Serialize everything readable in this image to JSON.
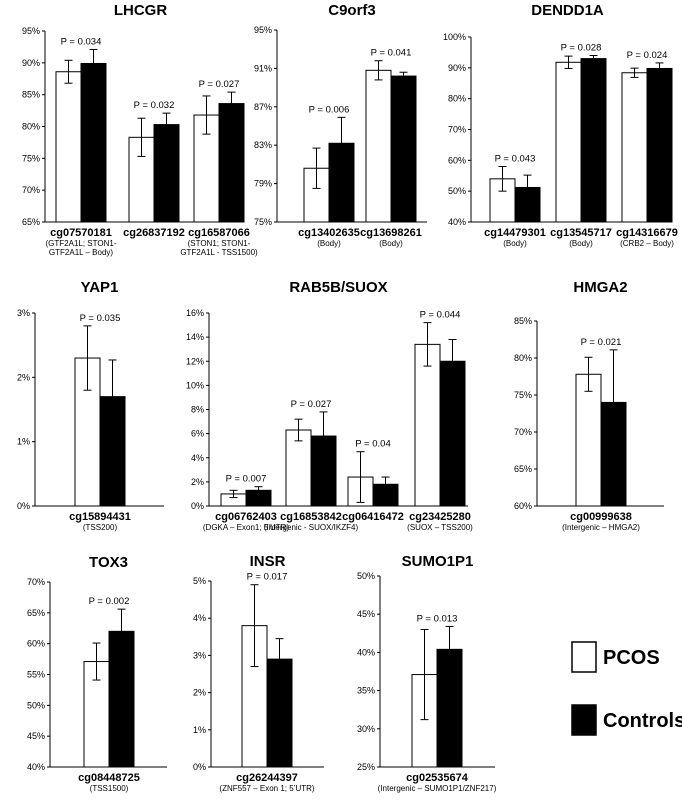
{
  "legend": [
    {
      "label": "PCOS",
      "color": "#ffffff"
    },
    {
      "label": "Controls",
      "color": "#000000"
    }
  ],
  "chart_data": [
    {
      "type": "bar",
      "title": "LHCGR",
      "ylim": [
        0.65,
        0.95
      ],
      "ticks": [
        "65%",
        "70%",
        "75%",
        "80%",
        "85%",
        "90%",
        "95%"
      ],
      "categories": [
        "cg07570181",
        "cg26837192",
        "cg16587066"
      ],
      "sublabels": [
        [
          "(GTF2A1L; STON1-",
          "GTF2A1L – Body)"
        ],
        [
          "",
          ""
        ],
        [
          "(STON1; STON1-",
          "GTF2A1L  - TSS1500)"
        ]
      ],
      "pvalues": [
        "P = 0.034",
        "P = 0.032",
        "P = 0.027"
      ],
      "series": [
        {
          "name": "PCOS",
          "values": [
            0.886,
            0.783,
            0.818
          ],
          "errors": [
            0.018,
            0.03,
            0.03
          ]
        },
        {
          "name": "Controls",
          "values": [
            0.899,
            0.803,
            0.836
          ],
          "errors": [
            0.022,
            0.018,
            0.018
          ]
        }
      ]
    },
    {
      "type": "bar",
      "title": "C9orf3",
      "ylim": [
        0.75,
        0.95
      ],
      "ticks": [
        "75%",
        "79%",
        "83%",
        "87%",
        "91%",
        "95%"
      ],
      "categories": [
        "cg13402635",
        "cg13698261"
      ],
      "sublabels": [
        [
          "(Body)"
        ],
        [
          "(Body)"
        ]
      ],
      "pvalues": [
        "P = 0.006",
        "P = 0.041"
      ],
      "series": [
        {
          "name": "PCOS",
          "values": [
            0.806,
            0.908
          ],
          "errors": [
            0.021,
            0.01
          ]
        },
        {
          "name": "Controls",
          "values": [
            0.832,
            0.902
          ],
          "errors": [
            0.027,
            0.004
          ]
        }
      ]
    },
    {
      "type": "bar",
      "title": "DENDD1A",
      "ylim": [
        0.4,
        1.0
      ],
      "ticks": [
        "40%",
        "50%",
        "60%",
        "70%",
        "80%",
        "90%",
        "100%"
      ],
      "categories": [
        "cg14479301",
        "cg13545717",
        "cg14316679"
      ],
      "sublabels": [
        [
          "(Body)"
        ],
        [
          "(Body)"
        ],
        [
          "(CRB2 – Body)"
        ]
      ],
      "pvalues": [
        "P = 0.043",
        "P = 0.028",
        "P = 0.024"
      ],
      "series": [
        {
          "name": "PCOS",
          "values": [
            0.54,
            0.918,
            0.884
          ],
          "errors": [
            0.04,
            0.02,
            0.015
          ]
        },
        {
          "name": "Controls",
          "values": [
            0.512,
            0.93,
            0.898
          ],
          "errors": [
            0.04,
            0.01,
            0.018
          ]
        }
      ]
    },
    {
      "type": "bar",
      "title": "YAP1",
      "ylim": [
        0,
        0.03
      ],
      "ticks": [
        "0%",
        "1%",
        "2%",
        "3%"
      ],
      "categories": [
        "cg15894431"
      ],
      "sublabels": [
        [
          "(TSS200)"
        ]
      ],
      "pvalues": [
        "P = 0.035"
      ],
      "series": [
        {
          "name": "PCOS",
          "values": [
            0.023
          ],
          "errors": [
            0.005
          ]
        },
        {
          "name": "Controls",
          "values": [
            0.017
          ],
          "errors": [
            0.0057
          ]
        }
      ]
    },
    {
      "type": "bar",
      "title": "RAB5B/SUOX",
      "ylim": [
        0,
        0.16
      ],
      "ticks": [
        "0%",
        "2%",
        "4%",
        "6%",
        "8%",
        "10%",
        "12%",
        "14%",
        "16%"
      ],
      "categories": [
        "cg06762403",
        "cg16853842",
        "cg06416472",
        "cg23425280"
      ],
      "sublabels": [
        [
          "(DGKA – Exon1; 5’UTR)"
        ],
        [
          "(Intergenic - SUOX/IKZF4)"
        ],
        [
          ""
        ],
        [
          "(SUOX – TSS200)"
        ]
      ],
      "pvalues": [
        "P = 0.007",
        "P = 0.027",
        "P = 0.04",
        "P = 0.044"
      ],
      "series": [
        {
          "name": "PCOS",
          "values": [
            0.01,
            0.063,
            0.024,
            0.134
          ],
          "errors": [
            0.003,
            0.009,
            0.021,
            0.018
          ]
        },
        {
          "name": "Controls",
          "values": [
            0.013,
            0.058,
            0.018,
            0.12
          ],
          "errors": [
            0.003,
            0.02,
            0.006,
            0.018
          ]
        }
      ]
    },
    {
      "type": "bar",
      "title": "HMGA2",
      "ylim": [
        0.6,
        0.85
      ],
      "ticks": [
        "60%",
        "65%",
        "70%",
        "75%",
        "80%",
        "85%"
      ],
      "categories": [
        "cg00999638"
      ],
      "sublabels": [
        [
          "(Intergenic – HMGA2)"
        ]
      ],
      "pvalues": [
        "P = 0.021"
      ],
      "series": [
        {
          "name": "PCOS",
          "values": [
            0.778
          ],
          "errors": [
            0.023
          ]
        },
        {
          "name": "Controls",
          "values": [
            0.74
          ],
          "errors": [
            0.071
          ]
        }
      ]
    },
    {
      "type": "bar",
      "title": "TOX3",
      "ylim": [
        0.4,
        0.7
      ],
      "ticks": [
        "40%",
        "45%",
        "50%",
        "55%",
        "60%",
        "65%",
        "70%"
      ],
      "categories": [
        "cg08448725"
      ],
      "sublabels": [
        [
          "(TSS1500)"
        ]
      ],
      "pvalues": [
        "P = 0.002"
      ],
      "series": [
        {
          "name": "PCOS",
          "values": [
            0.571
          ],
          "errors": [
            0.03
          ]
        },
        {
          "name": "Controls",
          "values": [
            0.62
          ],
          "errors": [
            0.036
          ]
        }
      ]
    },
    {
      "type": "bar",
      "title": "INSR",
      "ylim": [
        0,
        0.05
      ],
      "ticks": [
        "0%",
        "1%",
        "2%",
        "3%",
        "4%",
        "5%"
      ],
      "categories": [
        "cg26244397"
      ],
      "sublabels": [
        [
          "(ZNF557 – Exon 1; 5’UTR)"
        ]
      ],
      "pvalues": [
        "P = 0.017"
      ],
      "series": [
        {
          "name": "PCOS",
          "values": [
            0.038
          ],
          "errors": [
            0.011
          ]
        },
        {
          "name": "Controls",
          "values": [
            0.029
          ],
          "errors": [
            0.0055
          ]
        }
      ]
    },
    {
      "type": "bar",
      "title": "SUMO1P1",
      "ylim": [
        0.25,
        0.5
      ],
      "ticks": [
        "25%",
        "30%",
        "35%",
        "40%",
        "45%",
        "50%"
      ],
      "categories": [
        "cg02535674"
      ],
      "sublabels": [
        [
          "(Intergenic – SUMO1P1/ZNF217)"
        ]
      ],
      "pvalues": [
        "P = 0.013"
      ],
      "series": [
        {
          "name": "PCOS",
          "values": [
            0.371
          ],
          "errors": [
            0.059
          ]
        },
        {
          "name": "Controls",
          "values": [
            0.404
          ],
          "errors": [
            0.03
          ]
        }
      ]
    }
  ]
}
